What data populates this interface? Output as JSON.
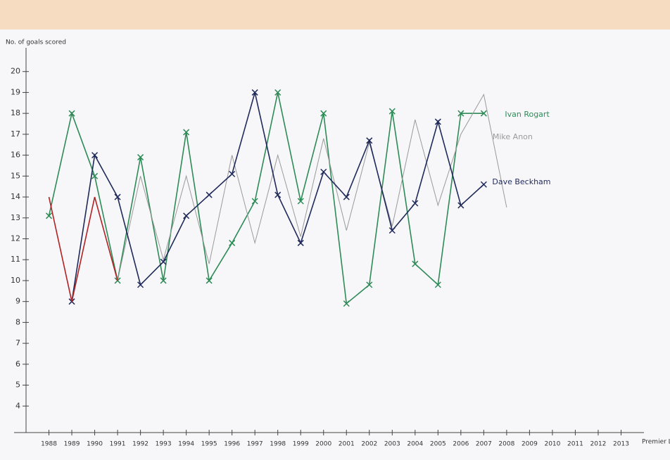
{
  "chart_data": {
    "type": "line",
    "y_label": "No. of goals scored",
    "x_label": "Premier League Year",
    "x": [
      1988,
      1989,
      1990,
      1991,
      1992,
      1993,
      1994,
      1995,
      1996,
      1997,
      1998,
      1999,
      2000,
      2001,
      2002,
      2003,
      2004,
      2005,
      2006,
      2007,
      2008
    ],
    "series": [
      {
        "name": "Ivan Rogart",
        "color": "#2e8b57",
        "marker": "x",
        "values": [
          13.1,
          18,
          15,
          10,
          15.9,
          10,
          17.1,
          10,
          11.8,
          13.8,
          19,
          13.8,
          18,
          8.9,
          9.8,
          18.1,
          10.8,
          9.8,
          18,
          18,
          null
        ]
      },
      {
        "name": "Mike Anon",
        "color": "#9a9a9a",
        "marker": "none",
        "values": [
          null,
          null,
          null,
          10,
          15,
          11,
          15,
          10.8,
          16,
          11.8,
          16,
          12.1,
          16.8,
          12.4,
          16.6,
          12.6,
          17.7,
          13.6,
          17,
          18.9,
          13.5
        ]
      },
      {
        "name": "Dave Beckham",
        "color": "#1f2a5a",
        "marker": "x",
        "values": [
          null,
          9,
          16,
          14,
          9.8,
          10.9,
          13.1,
          14.1,
          15.1,
          19,
          14.1,
          11.8,
          15.2,
          14,
          16.7,
          12.4,
          13.7,
          17.6,
          13.6,
          14.6,
          null
        ]
      },
      {
        "color": "#b22222",
        "marker": "none",
        "values": [
          14,
          9,
          14,
          10,
          null,
          null,
          null,
          null,
          null,
          null,
          null,
          null,
          null,
          null,
          null,
          null,
          null,
          null,
          null,
          null,
          null
        ]
      }
    ],
    "xlim": [
      1987,
      2014
    ],
    "xticks": [
      1988,
      1989,
      1990,
      1991,
      1992,
      1993,
      1994,
      1995,
      1996,
      1997,
      1998,
      1999,
      2000,
      2001,
      2002,
      2003,
      2004,
      2005,
      2006,
      2007,
      2008,
      2009,
      2010,
      2011,
      2012,
      2013
    ],
    "ylim": [
      3,
      21
    ],
    "yticks": [
      4,
      5,
      6,
      7,
      8,
      9,
      10,
      11,
      12,
      13,
      14,
      15,
      16,
      17,
      18,
      19,
      20
    ],
    "grid": false
  }
}
